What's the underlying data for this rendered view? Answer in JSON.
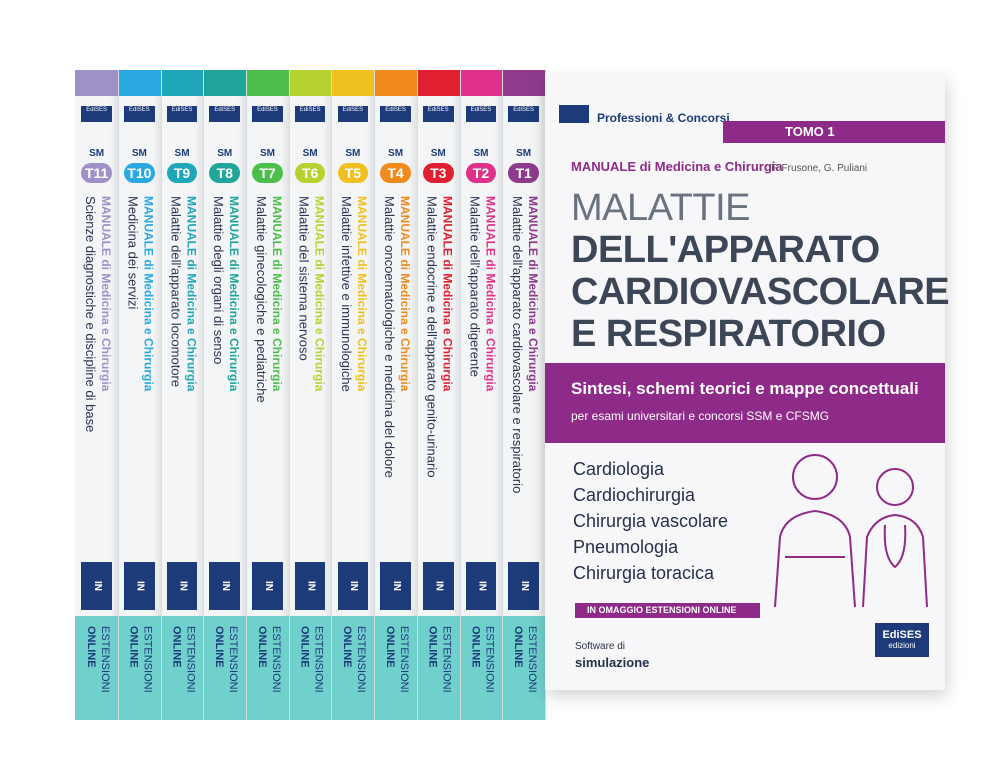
{
  "cover": {
    "series_label": "Professioni & Concorsi",
    "tome": "TOMO 1",
    "collana": "MANUALE di Medicina e Chirurgia",
    "authors": "F. Frusone, G. Puliani",
    "title_lines": [
      "MALATTIE",
      "DELL'APPARATO",
      "CARDIOVASCOLARE",
      "E RESPIRATORIO"
    ],
    "subtitle": "Sintesi, schemi teorici e mappe concettuali",
    "subtitle_2": "per esami universitari e concorsi SSM e CFSMG",
    "topics": [
      "Cardiologia",
      "Cardiochirurgia",
      "Chirurgia vascolare",
      "Pneumologia",
      "Chirurgia toracica"
    ],
    "gift": "IN OMAGGIO ESTENSIONI ONLINE",
    "software": [
      "Software di",
      "simulazione"
    ],
    "publisher": [
      "EdiSES",
      "edizioni"
    ]
  },
  "spines": [
    {
      "series": "SM",
      "volume": "T1",
      "collana": "MANUALE di Medicina e Chirurgia",
      "subject": "Malattie dell'apparato cardiovascolare e respiratorio",
      "color": "#8e3b8e"
    },
    {
      "series": "SM",
      "volume": "T2",
      "collana": "MANUALE di Medicina e Chirurgia",
      "subject": "Malattie dell'apparato digerente",
      "color": "#e0318a"
    },
    {
      "series": "SM",
      "volume": "T3",
      "collana": "MANUALE di Medicina e Chirurgia",
      "subject": "Malattie endocrine e dell'apparato genito-urinario",
      "color": "#e02030"
    },
    {
      "series": "SM",
      "volume": "T4",
      "collana": "MANUALE di Medicina e Chirurgia",
      "subject": "Malattie oncoematologiche e medicina del dolore",
      "color": "#f08a1c"
    },
    {
      "series": "SM",
      "volume": "T5",
      "collana": "MANUALE di Medicina e Chirurgia",
      "subject": "Malattie infettive e immunologiche",
      "color": "#f0c020"
    },
    {
      "series": "SM",
      "volume": "T6",
      "collana": "MANUALE di Medicina e Chirurgia",
      "subject": "Malattie del sistema nervoso",
      "color": "#b6d230"
    },
    {
      "series": "SM",
      "volume": "T7",
      "collana": "MANUALE di Medicina e Chirurgia",
      "subject": "Malattie ginecologiche e pediatriche",
      "color": "#4cbf4a"
    },
    {
      "series": "SM",
      "volume": "T8",
      "collana": "MANUALE di Medicina e Chirurgia",
      "subject": "Malattie degli organi di senso",
      "color": "#20a59a"
    },
    {
      "series": "SM",
      "volume": "T9",
      "collana": "MANUALE di Medicina e Chirurgia",
      "subject": "Malattie dell'apparato locomotore",
      "color": "#1fa6b8"
    },
    {
      "series": "SM",
      "volume": "T10",
      "collana": "MANUALE di Medicina e Chirurgia",
      "subject": "Medicina dei servizi",
      "color": "#2aa8e0"
    },
    {
      "series": "SM",
      "volume": "T11",
      "collana": "MANUALE di Medicina e Chirurgia",
      "subject": "Scienze diagnostiche e discipline di base",
      "color": "#a090c8"
    }
  ],
  "spine_logo": "EdiSES",
  "spine_badge": "IN OMAGGIO",
  "spine_online": [
    "ESTENSIONI",
    "ONLINE"
  ]
}
